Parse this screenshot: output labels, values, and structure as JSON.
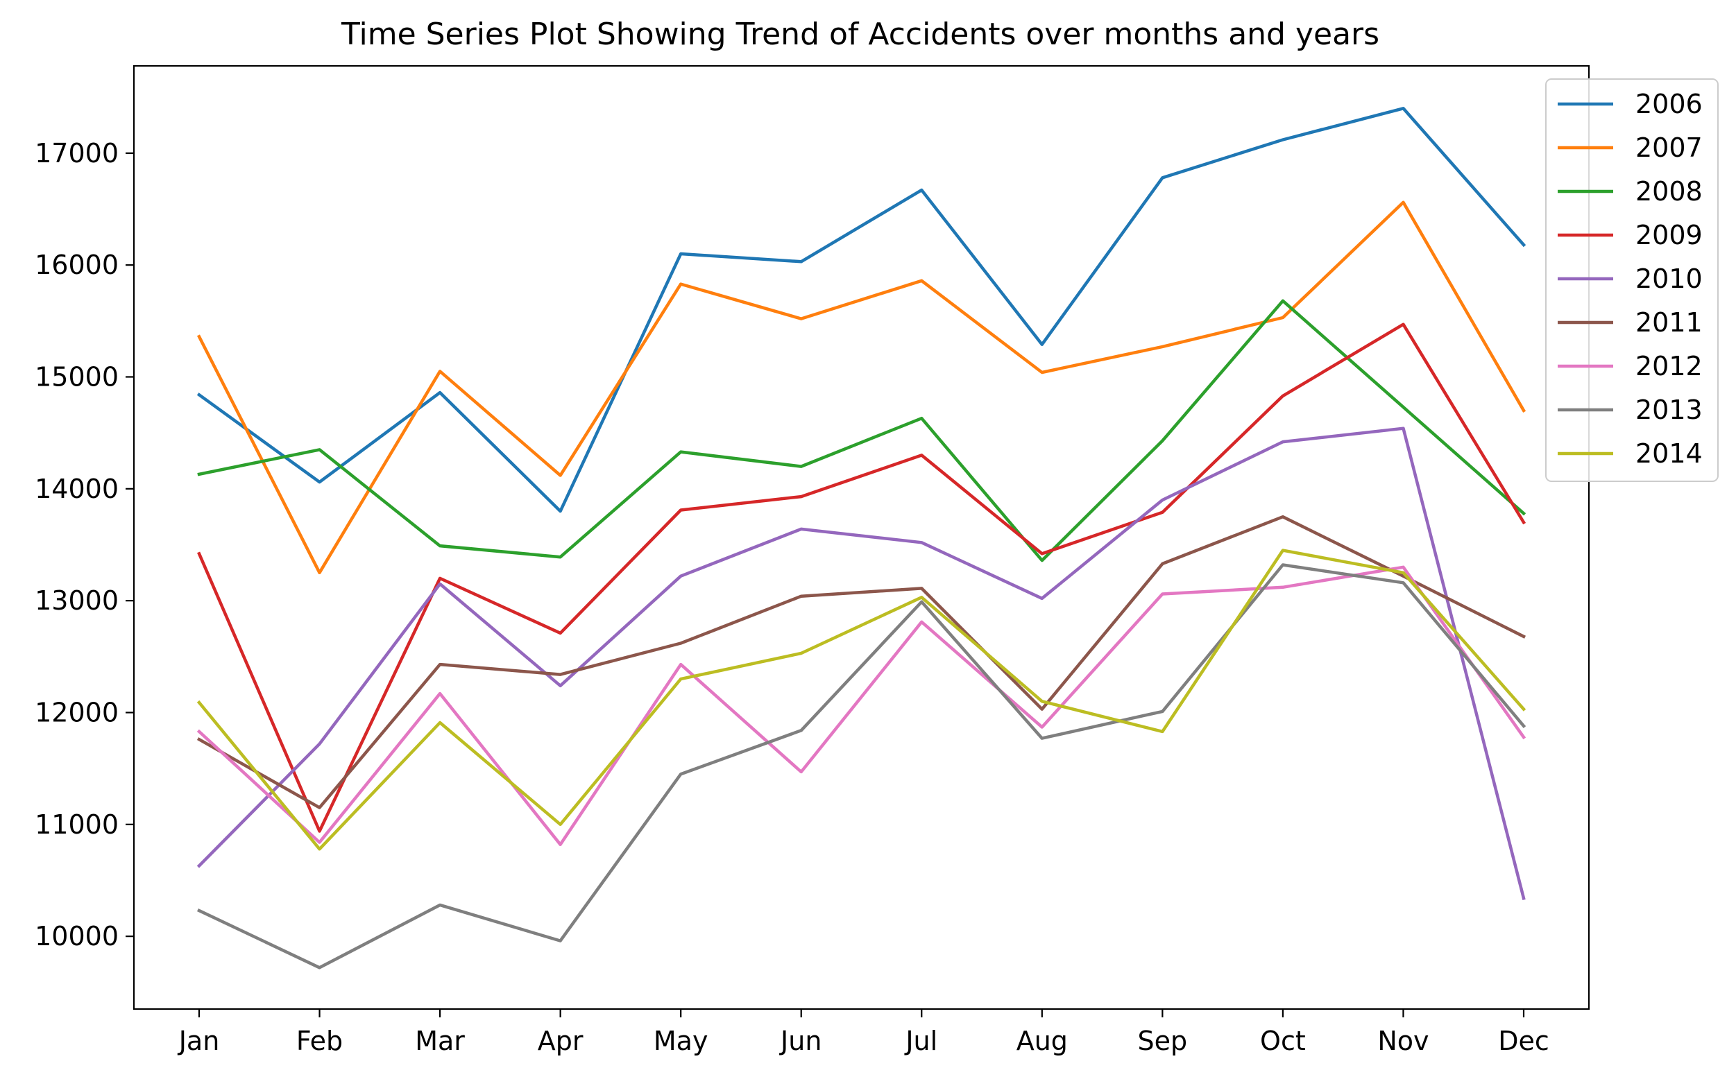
{
  "chart_data": {
    "type": "line",
    "title": "Time Series Plot Showing Trend of Accidents over months and years",
    "xlabel": "",
    "ylabel": "",
    "categories": [
      "Jan",
      "Feb",
      "Mar",
      "Apr",
      "May",
      "Jun",
      "Jul",
      "Aug",
      "Sep",
      "Oct",
      "Nov",
      "Dec"
    ],
    "ylim": [
      9350,
      17780
    ],
    "yticks": [
      10000,
      11000,
      12000,
      13000,
      14000,
      15000,
      16000,
      17000
    ],
    "ytick_labels": [
      "10000",
      "11000",
      "12000",
      "13000",
      "14000",
      "15000",
      "16000",
      "17000"
    ],
    "grid": false,
    "legend_position": "top-right",
    "series": [
      {
        "name": "2006",
        "color": "#1f77b4",
        "values": [
          14840,
          14060,
          14860,
          13800,
          16100,
          16030,
          16670,
          15290,
          16780,
          17120,
          17400,
          16180
        ]
      },
      {
        "name": "2007",
        "color": "#ff7f0e",
        "values": [
          15360,
          13250,
          15050,
          14120,
          15830,
          15520,
          15860,
          15040,
          15270,
          15530,
          16560,
          14700
        ]
      },
      {
        "name": "2008",
        "color": "#2ca02c",
        "values": [
          14130,
          14350,
          13490,
          13390,
          14330,
          14200,
          14630,
          13360,
          14430,
          15680,
          14730,
          13780
        ]
      },
      {
        "name": "2009",
        "color": "#d62728",
        "values": [
          13420,
          10940,
          13200,
          12710,
          13810,
          13930,
          14300,
          13420,
          13790,
          14830,
          15470,
          13700
        ]
      },
      {
        "name": "2010",
        "color": "#9467bd",
        "values": [
          10630,
          11720,
          13150,
          12240,
          13220,
          13640,
          13520,
          13020,
          13900,
          14420,
          14540,
          10340
        ]
      },
      {
        "name": "2011",
        "color": "#8c564b",
        "values": [
          11760,
          11150,
          12430,
          12340,
          12620,
          13040,
          13110,
          12030,
          13330,
          13750,
          13220,
          12680
        ]
      },
      {
        "name": "2012",
        "color": "#e377c2",
        "values": [
          11830,
          10840,
          12170,
          10820,
          12430,
          11470,
          12810,
          11870,
          13060,
          13120,
          13300,
          11780
        ]
      },
      {
        "name": "2013",
        "color": "#7f7f7f",
        "values": [
          10230,
          9720,
          10280,
          9960,
          11450,
          11840,
          12990,
          11770,
          12010,
          13320,
          13160,
          11880
        ]
      },
      {
        "name": "2014",
        "color": "#bcbd22",
        "values": [
          12090,
          10780,
          11910,
          11000,
          12300,
          12530,
          13030,
          12100,
          11830,
          13450,
          13250,
          12030
        ]
      }
    ]
  }
}
